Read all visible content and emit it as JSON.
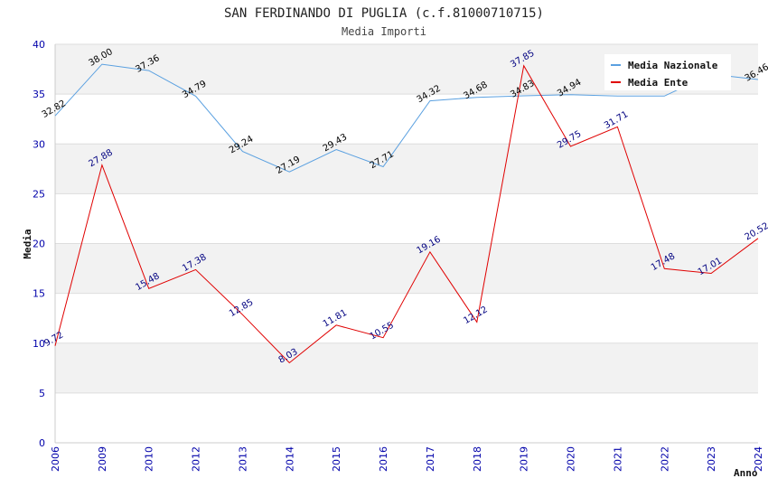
{
  "chart_data": {
    "type": "line",
    "title": "SAN FERDINANDO DI PUGLIA (c.f.81000710715)",
    "subtitle": "Media Importi",
    "ylabel": "Media",
    "xlabel": "Anno",
    "ylim": [
      0,
      40
    ],
    "yticks": [
      "0",
      "5",
      "10",
      "15",
      "20",
      "25",
      "30",
      "35",
      "40"
    ],
    "categories": [
      "2006",
      "2009",
      "2010",
      "2012",
      "2013",
      "2014",
      "2015",
      "2016",
      "2017",
      "2018",
      "2019",
      "2020",
      "2021",
      "2022",
      "2023",
      "2024"
    ],
    "legend_position": "top-right",
    "grid": true,
    "series": [
      {
        "name": "Media Nazionale",
        "color": "#5aa0e0",
        "label_color": "#000000",
        "values": [
          32.82,
          38.0,
          37.36,
          34.79,
          29.24,
          27.19,
          29.43,
          27.71,
          34.32,
          34.68,
          34.83,
          34.94,
          34.8,
          34.8,
          37.0,
          36.46
        ],
        "labels": [
          "32.82",
          "38.00",
          "37.36",
          "34.79",
          "29.24",
          "27.19",
          "29.43",
          "27.71",
          "34.32",
          "34.68",
          "34.83",
          "34.94",
          "",
          "",
          "",
          "36.46"
        ]
      },
      {
        "name": "Media Ente",
        "color": "#e00000",
        "label_color": "#000080",
        "values": [
          9.72,
          27.88,
          15.48,
          17.38,
          12.85,
          8.03,
          11.81,
          10.55,
          19.16,
          12.12,
          37.85,
          29.75,
          31.71,
          17.48,
          17.01,
          20.52
        ],
        "labels": [
          "9.72",
          "27.88",
          "15.48",
          "17.38",
          "12.85",
          "8.03",
          "11.81",
          "10.55",
          "19.16",
          "12.12",
          "37.85",
          "29.75",
          "31.71",
          "17.48",
          "17.01",
          "20.52"
        ]
      }
    ]
  }
}
